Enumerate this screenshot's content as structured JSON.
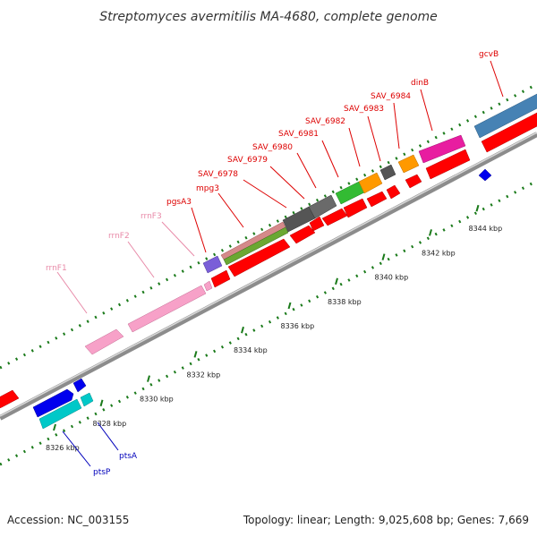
{
  "title": "Streptomyces avermitilis MA-4680, complete genome",
  "footer": {
    "accession": "Accession: NC_003155",
    "summary": "Topology: linear; Length: 9,025,608 bp; Genes: 7,669"
  },
  "colors": {
    "label_red": "#dd0000",
    "label_pink": "#e88aa8",
    "label_blue": "#0000bb",
    "backbone": "#a0a0a0",
    "dotted_track": "#1a7a1a"
  },
  "ticks": [
    "8326 kbp",
    "8328 kbp",
    "8330 kbp",
    "8332 kbp",
    "8334 kbp",
    "8336 kbp",
    "8338 kbp",
    "8340 kbp",
    "8342 kbp",
    "8344 kbp"
  ],
  "gene_labels": [
    "gcvB",
    "dinB",
    "SAV_6984",
    "SAV_6983",
    "SAV_6982",
    "SAV_6981",
    "SAV_6980",
    "SAV_6979",
    "SAV_6978",
    "mpg3",
    "pgsA3",
    "rrnF3",
    "rrnF2",
    "rrnF1",
    "ptsA",
    "ptsP"
  ]
}
